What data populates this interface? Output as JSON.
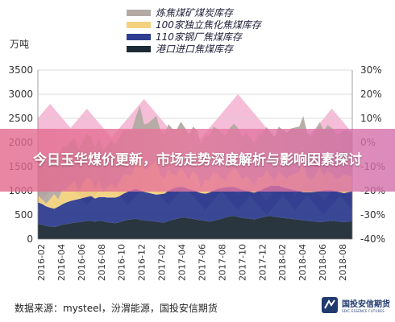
{
  "legend": [
    {
      "label": "炼焦煤矿煤炭库存",
      "color": "#b3aaa3"
    },
    {
      "label": "100家独立焦化焦煤库存",
      "color": "#f2d27e"
    },
    {
      "label": "110家钢厂焦煤库存",
      "color": "#2e3d8f"
    },
    {
      "label": "港口进口焦煤库存",
      "color": "#1d2b36"
    }
  ],
  "unit_label": "万吨",
  "overlay_title": "今日玉华煤价更新，市场走势深度解析与影响因素探讨",
  "footer": {
    "source": "数据来源：mysteel，汾渭能源，国投安信期货",
    "logo_cn": "国投安信期货",
    "logo_en": "SDIC ESSENCE FUTURES"
  },
  "chart_data": {
    "type": "area",
    "stacked": true,
    "y_left": {
      "min": 0,
      "max": 3500,
      "ticks": [
        0,
        500,
        1000,
        1500,
        2000,
        2500,
        3000,
        3500
      ]
    },
    "y_right": {
      "min": -40,
      "max": 30,
      "ticks": [
        "30%",
        "20%",
        "10%",
        "0%",
        "-10%",
        "-20%",
        "-30%",
        "-40%"
      ]
    },
    "x_ticks": [
      "2016-02",
      "2016-04",
      "2016-06",
      "2016-08",
      "2016-10",
      "2016-12",
      "2017-02",
      "2017-04",
      "2017-06",
      "2017-08",
      "2017-10",
      "2017-12",
      "2018-02",
      "2018-04",
      "2018-06",
      "2018-08"
    ],
    "grid": true,
    "series": [
      {
        "name": "港口进口焦煤库存",
        "color": "#1d2b36",
        "values": [
          310,
          300,
          270,
          260,
          250,
          270,
          300,
          310,
          330,
          340,
          350,
          360,
          370,
          380,
          360,
          380,
          370,
          350,
          340,
          330,
          350,
          380,
          400,
          410,
          420,
          400,
          390,
          380,
          370,
          360,
          350,
          340,
          380,
          400,
          420,
          440,
          450,
          430,
          420,
          400,
          390,
          380,
          360,
          380,
          400,
          420,
          450,
          470,
          480,
          460,
          440,
          430,
          420,
          410,
          430,
          450,
          470,
          480,
          460,
          450,
          440,
          430,
          420,
          410,
          400,
          390,
          380,
          370,
          360,
          350,
          360,
          370,
          380,
          370,
          360,
          350,
          360,
          370
        ]
      },
      {
        "name": "110家钢厂焦煤库存",
        "color": "#2e3d8f",
        "values": [
          450,
          430,
          410,
          390,
          380,
          400,
          420,
          450,
          460,
          470,
          480,
          490,
          500,
          510,
          480,
          490,
          500,
          510,
          520,
          530,
          540,
          560,
          580,
          600,
          620,
          610,
          590,
          580,
          570,
          560,
          580,
          600,
          620,
          640,
          650,
          640,
          620,
          600,
          590,
          580,
          560,
          560,
          600,
          620,
          640,
          630,
          620,
          610,
          600,
          590,
          580,
          570,
          560,
          550,
          560,
          580,
          600,
          620,
          640,
          650,
          630,
          620,
          610,
          600,
          590,
          580,
          590,
          600,
          620,
          640,
          650,
          640,
          630,
          620,
          610,
          600,
          610,
          620
        ]
      },
      {
        "name": "100家独立焦化焦煤库存",
        "color": "#f2d27e",
        "values": [
          150,
          100,
          50,
          180,
          300,
          150,
          300,
          250,
          350,
          400,
          150,
          300,
          400,
          350,
          200,
          350,
          100,
          200,
          300,
          200,
          300,
          400,
          350,
          300,
          550,
          800,
          450,
          500,
          600,
          700,
          400,
          300,
          450,
          300,
          250,
          400,
          300,
          200,
          400,
          350,
          100,
          300,
          250,
          400,
          300,
          200,
          150,
          300,
          400,
          350,
          200,
          300,
          250,
          150,
          300,
          250,
          350,
          200,
          100,
          300,
          250,
          200,
          300,
          350,
          400,
          650,
          300,
          250,
          350,
          500,
          300,
          400,
          350,
          250,
          300,
          400,
          350,
          300
        ]
      },
      {
        "name": "炼焦煤矿煤炭库存",
        "color": "#b3aaa3",
        "values": [
          900,
          900,
          880,
          880,
          870,
          880,
          900,
          900,
          880,
          880,
          870,
          880,
          900,
          880,
          870,
          870,
          880,
          880,
          890,
          900,
          910,
          920,
          930,
          940,
          950,
          950,
          940,
          940,
          930,
          930,
          920,
          920,
          930,
          940,
          950,
          950,
          940,
          930,
          920,
          920,
          910,
          910,
          920,
          930,
          940,
          940,
          930,
          920,
          910,
          900,
          900,
          890,
          880,
          870,
          880,
          890,
          900,
          910,
          920,
          930,
          940,
          950,
          960,
          950,
          940,
          930,
          920,
          910,
          920,
          930,
          940,
          950,
          940,
          930,
          920,
          910,
          920,
          930
        ]
      }
    ],
    "pct_series": [
      {
        "color": "#f2a7c9",
        "values": [
          10,
          12,
          14,
          16,
          14,
          12,
          10,
          8,
          6,
          8,
          10,
          12,
          14,
          12,
          10,
          8,
          6,
          4,
          2,
          4,
          6,
          8,
          10,
          12,
          14,
          16,
          18,
          16,
          14,
          12,
          10,
          8,
          6,
          4,
          2,
          0,
          -2,
          -4,
          -2,
          0,
          2,
          4,
          6,
          8,
          10,
          12,
          14,
          16,
          18,
          20,
          18,
          16,
          14,
          12,
          10,
          8,
          6,
          4,
          2,
          0,
          -2,
          -4,
          -6,
          -4,
          -2,
          0,
          2,
          4,
          6,
          8,
          10,
          12,
          14,
          12,
          10,
          8,
          6,
          4
        ]
      },
      {
        "color": "#a43f95",
        "values": [
          -20,
          -18,
          -16,
          -14,
          -12,
          -10,
          -8,
          -10,
          -12,
          -14,
          -16,
          -18,
          -20,
          -18,
          -16,
          -14,
          -12,
          -10,
          -12,
          -14,
          -16,
          -18,
          -20,
          -18,
          -16,
          -14,
          -12,
          -10,
          -12,
          -14,
          -16,
          -18,
          -20,
          -18,
          -16,
          -14,
          -12,
          -14,
          -16,
          -18,
          -20,
          -22,
          -20,
          -18,
          -16,
          -14,
          -16,
          -18,
          -20,
          -22,
          -20,
          -18,
          -16,
          -18,
          -20,
          -22,
          -24,
          -22,
          -20,
          -18,
          -16,
          -18,
          -20,
          -22,
          -20,
          -18,
          -16,
          -18,
          -20,
          -22,
          -24,
          -22,
          -20,
          -18,
          -16,
          -18,
          -20,
          -22
        ]
      }
    ]
  }
}
